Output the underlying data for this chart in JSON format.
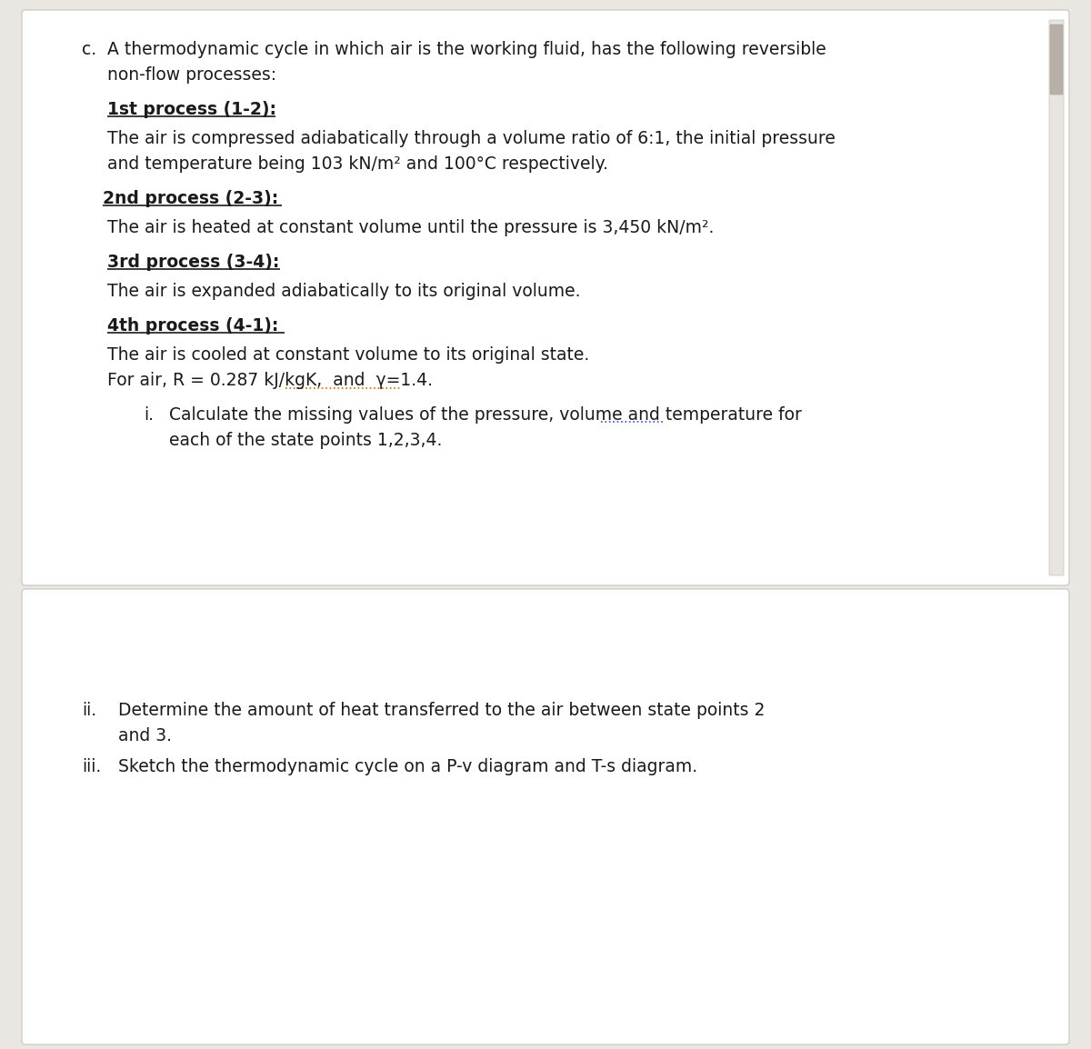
{
  "bg_color": "#eae7e2",
  "box1_color": "#ffffff",
  "box2_color": "#ffffff",
  "text_color": "#1a1a1a",
  "font_size_body": 13.5,
  "font_size_heading": 13.5,
  "scrollbar_color": "#b8b0a8",
  "label_c": "c.",
  "intro_line1": "A thermodynamic cycle in which air is the working fluid, has the following reversible",
  "intro_line2": "non-flow processes:",
  "heading1": "1st process (1-2):",
  "body1_line1": "The air is compressed adiabatically through a volume ratio of 6:1, the initial pressure",
  "body1_line2": "and temperature being 103 kN/m² and 100°C respectively.",
  "heading2": "2nd process (2-3):",
  "body2": "The air is heated at constant volume until the pressure is 3,450 kN/m².",
  "heading3": "3rd process (3-4):",
  "body3": "The air is expanded adiabatically to its original volume.",
  "heading4": "4th process (4-1):",
  "body4": "The air is cooled at constant volume to its original state.",
  "for_air_part1": "For air, R = 0.287 kJ/kgK,  and  ",
  "for_air_gamma": "γ=1.4.",
  "sub_i_prefix": "i.",
  "sub_i_line1": "Calculate the missing values of the pressure, volume and temperature for",
  "sub_i_line2": "each of the state points 1,2,3,4.",
  "sub_ii_prefix": "ii.",
  "sub_ii_line1": "Determine the amount of heat transferred to the air between state points 2",
  "sub_ii_line2": "and 3.",
  "sub_iii_prefix": "iii.",
  "sub_iii_line": "Sketch the thermodynamic cycle on a P-v diagram and T-s diagram."
}
